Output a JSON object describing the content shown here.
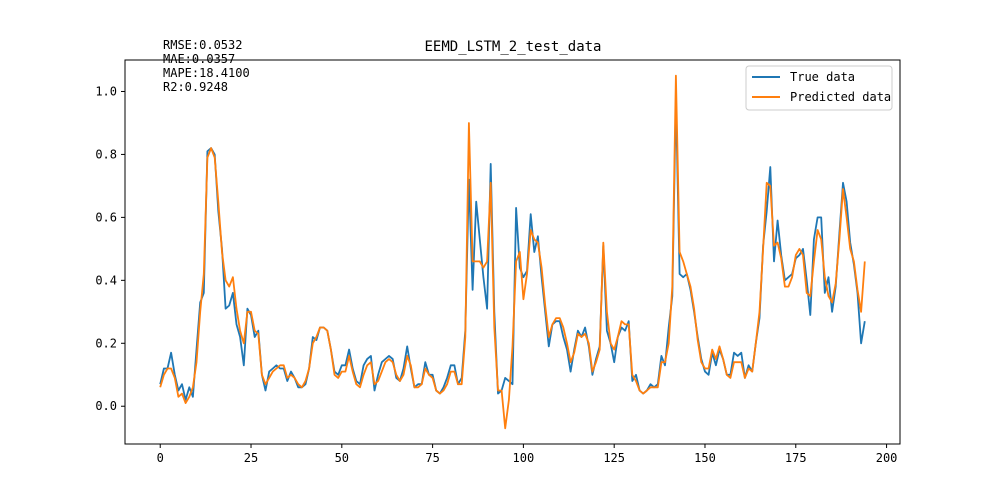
{
  "colors": {
    "true_series": "#1f77b4",
    "predicted_series": "#ff7f0e",
    "axes": "#000000",
    "background": "#ffffff",
    "legend_border": "#cccccc"
  },
  "metrics": [
    {
      "label": "RMSE",
      "value": "0.0532",
      "text": "RMSE:0.0532"
    },
    {
      "label": "MAE",
      "value": "0.0357",
      "text": "MAE:0.0357"
    },
    {
      "label": "MAPE",
      "value": "18.4100",
      "text": "MAPE:18.4100"
    },
    {
      "label": "R2",
      "value": "0.9248",
      "text": "R2:0.9248"
    }
  ],
  "chart_data": {
    "type": "line",
    "title": "EEMD_LSTM_2_test_data",
    "xlabel": "",
    "ylabel": "",
    "xlim": [
      -9.7,
      203.7
    ],
    "ylim": [
      -0.12,
      1.1
    ],
    "xticks": [
      0,
      25,
      50,
      75,
      100,
      125,
      150,
      175,
      200
    ],
    "yticks": [
      0.0,
      0.2,
      0.4,
      0.6,
      0.8,
      1.0
    ],
    "xtick_labels": [
      "0",
      "25",
      "50",
      "75",
      "100",
      "125",
      "150",
      "175",
      "200"
    ],
    "ytick_labels": [
      "0.0",
      "0.2",
      "0.4",
      "0.6",
      "0.8",
      "1.0"
    ],
    "grid": false,
    "legend_position": "top-right",
    "series": [
      {
        "name": "True data",
        "color": "#1f77b4",
        "values": [
          0.07,
          0.12,
          0.12,
          0.17,
          0.1,
          0.05,
          0.07,
          0.02,
          0.06,
          0.03,
          0.18,
          0.33,
          0.36,
          0.81,
          0.82,
          0.8,
          0.62,
          0.5,
          0.31,
          0.32,
          0.36,
          0.26,
          0.22,
          0.13,
          0.31,
          0.29,
          0.22,
          0.24,
          0.1,
          0.05,
          0.11,
          0.12,
          0.13,
          0.12,
          0.12,
          0.08,
          0.11,
          0.09,
          0.06,
          0.06,
          0.07,
          0.12,
          0.22,
          0.21,
          0.25,
          0.25,
          0.24,
          0.18,
          0.11,
          0.1,
          0.13,
          0.13,
          0.18,
          0.12,
          0.08,
          0.07,
          0.13,
          0.15,
          0.16,
          0.05,
          0.1,
          0.14,
          0.15,
          0.16,
          0.15,
          0.09,
          0.08,
          0.12,
          0.19,
          0.12,
          0.06,
          0.07,
          0.07,
          0.14,
          0.1,
          0.1,
          0.05,
          0.04,
          0.06,
          0.09,
          0.13,
          0.13,
          0.07,
          0.09,
          0.24,
          0.72,
          0.37,
          0.65,
          0.53,
          0.41,
          0.31,
          0.77,
          0.3,
          0.04,
          0.05,
          0.09,
          0.08,
          0.07,
          0.63,
          0.44,
          0.41,
          0.43,
          0.61,
          0.49,
          0.54,
          0.41,
          0.3,
          0.19,
          0.26,
          0.27,
          0.27,
          0.22,
          0.18,
          0.11,
          0.18,
          0.24,
          0.22,
          0.25,
          0.19,
          0.1,
          0.15,
          0.19,
          0.51,
          0.24,
          0.2,
          0.14,
          0.22,
          0.25,
          0.24,
          0.27,
          0.08,
          0.1,
          0.05,
          0.04,
          0.05,
          0.07,
          0.06,
          0.07,
          0.16,
          0.13,
          0.25,
          0.35,
          0.98,
          0.42,
          0.41,
          0.42,
          0.37,
          0.3,
          0.22,
          0.15,
          0.11,
          0.1,
          0.17,
          0.13,
          0.18,
          0.15,
          0.1,
          0.1,
          0.17,
          0.16,
          0.17,
          0.09,
          0.13,
          0.11,
          0.2,
          0.28,
          0.51,
          0.62,
          0.76,
          0.46,
          0.59,
          0.48,
          0.4,
          0.41,
          0.42,
          0.47,
          0.48,
          0.5,
          0.4,
          0.29,
          0.53,
          0.6,
          0.6,
          0.36,
          0.41,
          0.3,
          0.38,
          0.55,
          0.71,
          0.65,
          0.52,
          0.45,
          0.36,
          0.2,
          0.27
        ]
      },
      {
        "name": "Predicted data",
        "color": "#ff7f0e",
        "values": [
          0.06,
          0.1,
          0.12,
          0.12,
          0.09,
          0.03,
          0.04,
          0.01,
          0.03,
          0.06,
          0.14,
          0.3,
          0.42,
          0.79,
          0.82,
          0.79,
          0.65,
          0.49,
          0.4,
          0.38,
          0.41,
          0.31,
          0.24,
          0.2,
          0.3,
          0.3,
          0.24,
          0.23,
          0.1,
          0.07,
          0.09,
          0.11,
          0.12,
          0.13,
          0.13,
          0.09,
          0.1,
          0.09,
          0.07,
          0.06,
          0.08,
          0.12,
          0.2,
          0.22,
          0.25,
          0.25,
          0.24,
          0.18,
          0.1,
          0.09,
          0.11,
          0.11,
          0.16,
          0.11,
          0.07,
          0.06,
          0.1,
          0.13,
          0.14,
          0.07,
          0.08,
          0.11,
          0.14,
          0.15,
          0.14,
          0.1,
          0.08,
          0.1,
          0.16,
          0.13,
          0.06,
          0.06,
          0.07,
          0.12,
          0.1,
          0.09,
          0.05,
          0.04,
          0.05,
          0.07,
          0.11,
          0.11,
          0.07,
          0.07,
          0.22,
          0.9,
          0.46,
          0.46,
          0.46,
          0.44,
          0.46,
          0.71,
          0.25,
          0.05,
          0.05,
          -0.07,
          0.02,
          0.19,
          0.46,
          0.49,
          0.34,
          0.42,
          0.56,
          0.53,
          0.52,
          0.44,
          0.32,
          0.22,
          0.26,
          0.28,
          0.28,
          0.25,
          0.2,
          0.14,
          0.17,
          0.23,
          0.22,
          0.23,
          0.2,
          0.11,
          0.14,
          0.18,
          0.52,
          0.3,
          0.2,
          0.18,
          0.22,
          0.27,
          0.26,
          0.26,
          0.1,
          0.08,
          0.05,
          0.04,
          0.05,
          0.06,
          0.06,
          0.06,
          0.14,
          0.14,
          0.2,
          0.38,
          1.05,
          0.49,
          0.46,
          0.42,
          0.38,
          0.31,
          0.21,
          0.14,
          0.12,
          0.12,
          0.18,
          0.15,
          0.19,
          0.15,
          0.1,
          0.09,
          0.14,
          0.14,
          0.14,
          0.09,
          0.12,
          0.11,
          0.2,
          0.3,
          0.5,
          0.71,
          0.7,
          0.51,
          0.52,
          0.47,
          0.38,
          0.38,
          0.41,
          0.48,
          0.5,
          0.48,
          0.36,
          0.35,
          0.46,
          0.56,
          0.53,
          0.41,
          0.35,
          0.33,
          0.39,
          0.53,
          0.69,
          0.6,
          0.5,
          0.46,
          0.37,
          0.3,
          0.46
        ]
      }
    ]
  }
}
